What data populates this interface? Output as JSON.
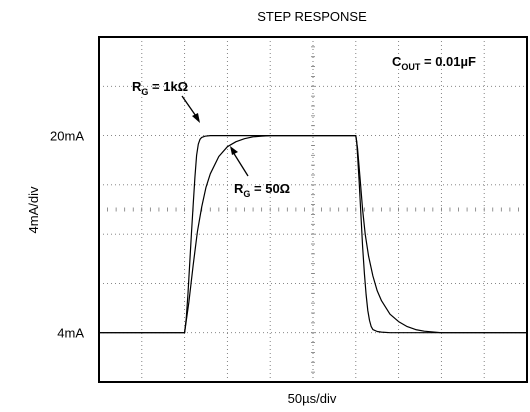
{
  "chart_data": {
    "type": "line",
    "title": "STEP RESPONSE",
    "xlabel": "50µs/div",
    "ylabel": "4mA/div",
    "grid": true,
    "x_unit": "µs",
    "y_unit": "mA",
    "xlim": [
      0,
      500
    ],
    "ylim": [
      0,
      28
    ],
    "y_tick_labels": [
      {
        "value": 4,
        "text": "4mA"
      },
      {
        "value": 20,
        "text": "20mA"
      }
    ],
    "condition": {
      "main": "C",
      "sub": "OUT",
      "rest": " = 0.01µF"
    },
    "series": [
      {
        "name": "RG = 1kΩ",
        "label": {
          "main": "R",
          "sub": "G",
          "rest": " = 1kΩ"
        },
        "color": "#000000",
        "x": [
          0,
          100,
          102,
          104,
          106,
          108,
          110,
          112,
          114,
          116,
          118,
          120,
          124,
          130,
          140,
          150,
          300,
          301,
          302,
          304,
          306,
          308,
          310,
          312,
          314,
          316,
          318,
          320,
          325,
          330,
          340,
          350,
          500
        ],
        "y": [
          4,
          4,
          5.2,
          7.2,
          9.6,
          12,
          14.4,
          16.6,
          18.4,
          19.3,
          19.7,
          19.85,
          19.95,
          20,
          20,
          20,
          20,
          19.5,
          18.5,
          16.2,
          13.6,
          11,
          8.8,
          7.1,
          5.8,
          5.0,
          4.5,
          4.25,
          4.1,
          4.05,
          4,
          4,
          4
        ]
      },
      {
        "name": "RG = 50Ω",
        "label": {
          "main": "R",
          "sub": "G",
          "rest": " = 50Ω"
        },
        "color": "#000000",
        "x": [
          0,
          100,
          105,
          110,
          115,
          120,
          125,
          130,
          140,
          150,
          160,
          170,
          180,
          190,
          200,
          220,
          300,
          302,
          305,
          308,
          311,
          315,
          320,
          325,
          330,
          340,
          350,
          360,
          370,
          380,
          400,
          500
        ],
        "y": [
          4,
          4,
          6.5,
          9.5,
          12.2,
          14.2,
          15.8,
          16.9,
          18.3,
          19.1,
          19.5,
          19.75,
          19.9,
          19.95,
          20,
          20,
          20,
          19,
          16.5,
          14,
          12,
          10.2,
          8.6,
          7.4,
          6.6,
          5.5,
          4.9,
          4.5,
          4.25,
          4.12,
          4,
          4
        ]
      }
    ]
  }
}
